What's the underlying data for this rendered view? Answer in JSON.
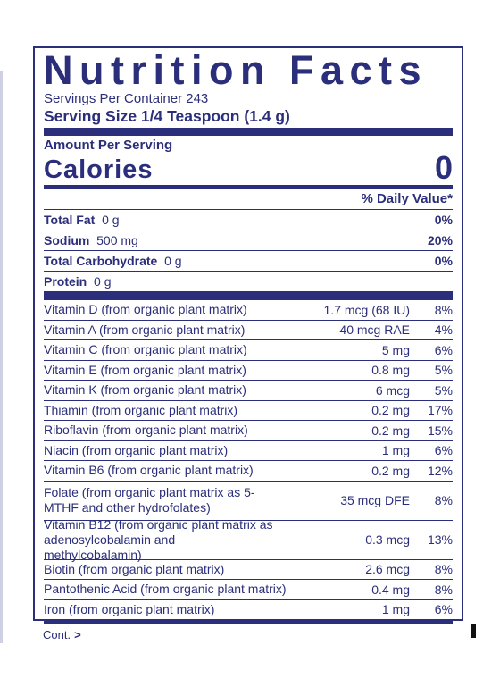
{
  "title": "Nutrition Facts",
  "servings_per_container": "Servings Per Container 243",
  "serving_size": "Serving Size 1/4 Teaspoon (1.4 g)",
  "amount_per_serving": "Amount Per Serving",
  "calories_label": "Calories",
  "calories_value": "0",
  "daily_value_header": "% Daily Value*",
  "macros": [
    {
      "name": "Total Fat",
      "amount": "0 g",
      "dv": "0%"
    },
    {
      "name": "Sodium",
      "amount": "500 mg",
      "dv": "20%"
    },
    {
      "name": "Total Carbohydrate",
      "amount": "0 g",
      "dv": "0%"
    },
    {
      "name": "Protein",
      "amount": "0 g",
      "dv": ""
    }
  ],
  "vitamins": [
    {
      "name": "Vitamin D (from organic plant matrix)",
      "amount": "1.7 mcg (68 IU)",
      "dv": "8%"
    },
    {
      "name": "Vitamin A (from organic plant matrix)",
      "amount": "40 mcg RAE",
      "dv": "4%"
    },
    {
      "name": "Vitamin C (from organic plant matrix)",
      "amount": "5 mg",
      "dv": "6%"
    },
    {
      "name": "Vitamin E (from organic plant matrix)",
      "amount": "0.8 mg",
      "dv": "5%"
    },
    {
      "name": "Vitamin K (from organic plant matrix)",
      "amount": "6 mcg",
      "dv": "5%"
    },
    {
      "name": "Thiamin (from organic plant matrix)",
      "amount": "0.2 mg",
      "dv": "17%"
    },
    {
      "name": "Riboflavin (from organic plant matrix)",
      "amount": "0.2 mg",
      "dv": "15%"
    },
    {
      "name": "Niacin (from organic plant matrix)",
      "amount": "1 mg",
      "dv": "6%"
    },
    {
      "name": "Vitamin B6 (from organic plant matrix)",
      "amount": "0.2 mg",
      "dv": "12%"
    },
    {
      "name": "Folate (from organic plant matrix as 5-MTHF and other hydrofolates)",
      "amount": "35 mcg DFE",
      "dv": "8%"
    },
    {
      "name": "Vitamin B12 (from organic plant matrix as adenosylcobalamin and methylcobalamin)",
      "amount": "0.3 mcg",
      "dv": "13%"
    },
    {
      "name": "Biotin (from organic plant matrix)",
      "amount": "2.6 mcg",
      "dv": "8%"
    },
    {
      "name": "Pantothenic Acid (from organic plant matrix)",
      "amount": "0.4 mg",
      "dv": "8%"
    },
    {
      "name": "Iron (from organic plant matrix)",
      "amount": "1 mg",
      "dv": "6%"
    }
  ],
  "continued_label": "Cont.",
  "continued_arrow": ">",
  "colors": {
    "ink": "#2b2e7a",
    "background": "#ffffff"
  }
}
